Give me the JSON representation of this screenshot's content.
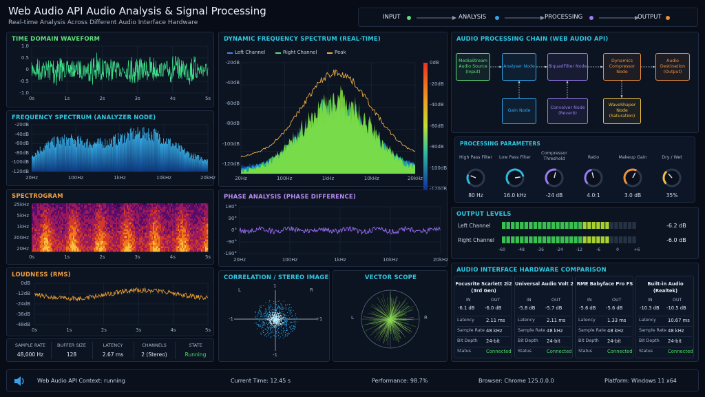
{
  "header": {
    "title": "Web Audio API Audio Analysis & Signal Processing",
    "subtitle": "Real-time Analysis Across Different Audio Interface Hardware",
    "flow": [
      {
        "label": "INPUT",
        "color": "#5fe07a"
      },
      {
        "label": "ANALYSIS",
        "color": "#30a8f0"
      },
      {
        "label": "PROCESSING",
        "color": "#9b7cf2"
      },
      {
        "label": "OUTPUT",
        "color": "#f0903a"
      }
    ]
  },
  "waveform": {
    "title": "TIME DOMAIN WAVEFORM",
    "y_ticks": [
      "1.0",
      "0.5",
      "0",
      "-0.5",
      "-1.0"
    ],
    "x_ticks": [
      "0s",
      "1s",
      "2s",
      "3s",
      "4s",
      "5s"
    ]
  },
  "freq": {
    "title": "FREQUENCY SPECTRUM (ANALYZER NODE)",
    "y_ticks": [
      "-20dB",
      "-40dB",
      "-60dB",
      "-80dB",
      "-100dB",
      "-120dB"
    ],
    "x_ticks": [
      "20Hz",
      "100Hz",
      "1kHz",
      "10kHz",
      "20kHz"
    ]
  },
  "spectrogram": {
    "title": "SPECTROGRAM",
    "y_ticks": [
      "25kHz",
      "5kHz",
      "1kHz",
      "200Hz",
      "20Hz"
    ],
    "x_ticks": [
      "0s",
      "1s",
      "2s",
      "3s",
      "4s",
      "5s"
    ]
  },
  "loudness": {
    "title": "LOUDNESS (RMS)",
    "y_ticks": [
      "0dB",
      "-12dB",
      "-24dB",
      "-36dB",
      "-48dB"
    ],
    "x_ticks": [
      "0s",
      "1s",
      "2s",
      "3s",
      "4s",
      "5s"
    ]
  },
  "stats": [
    {
      "label": "SAMPLE RATE",
      "value": "48,000 Hz"
    },
    {
      "label": "BUFFER SIZE",
      "value": "128"
    },
    {
      "label": "LATENCY",
      "value": "2.67 ms"
    },
    {
      "label": "CHANNELS",
      "value": "2 (Stereo)"
    },
    {
      "label": "STATE",
      "value": "Running",
      "color": "#4cd964"
    }
  ],
  "dynamic": {
    "title": "DYNAMIC FREQUENCY SPECTRUM (REAL-TIME)",
    "legend": [
      {
        "label": "Left Channel",
        "color": "#3a8ef0"
      },
      {
        "label": "Right Channel",
        "color": "#5fe07a"
      },
      {
        "label": "Peak",
        "color": "#f0b040"
      }
    ],
    "y_ticks": [
      "-20dB",
      "-40dB",
      "-60dB",
      "-80dB",
      "-100dB",
      "-120dB"
    ],
    "x_ticks": [
      "20Hz",
      "100Hz",
      "1kHz",
      "10kHz",
      "20kHz"
    ],
    "scale_ticks": [
      "0dB",
      "-20dB",
      "-40dB",
      "-60dB",
      "-80dB",
      "-100dB",
      "-120dB"
    ]
  },
  "phase": {
    "title": "PHASE ANALYSIS (PHASE DIFFERENCE)",
    "y_ticks": [
      "180°",
      "90°",
      "0°",
      "-90°",
      "-180°"
    ],
    "x_ticks": [
      "20Hz",
      "100Hz",
      "1kHz",
      "10kHz",
      "20kHz"
    ]
  },
  "correlation": {
    "title": "CORRELATION / STEREO IMAGE",
    "l": "L",
    "r": "R",
    "neg": "-1",
    "pos": "+1",
    "top": "1",
    "bottom": "-1"
  },
  "vectorscope": {
    "title": "VECTOR SCOPE",
    "l": "L",
    "r": "R"
  },
  "chain": {
    "title": "AUDIO PROCESSING CHAIN (WEB AUDIO API)",
    "nodes": [
      {
        "label": "MediaStream Audio Source (Input)",
        "color": "#5fe07a"
      },
      {
        "label": "Analyser Node",
        "color": "#30a8f0"
      },
      {
        "label": "BiquadFilter Node",
        "color": "#9b7cf2"
      },
      {
        "label": "Dynamics Compressor Node",
        "color": "#f0903a"
      },
      {
        "label": "Audio Destination (Output)",
        "color": "#f0903a"
      },
      {
        "label": "Gain Node",
        "color": "#30a8f0"
      },
      {
        "label": "Convolver Node (Reverb)",
        "color": "#9b7cf2"
      },
      {
        "label": "WaveShaper Node (Saturation)",
        "color": "#f0c040"
      }
    ]
  },
  "params": {
    "title": "PROCESSING PARAMETERS",
    "knobs": [
      {
        "label": "High Pass Filter",
        "value": "80 Hz",
        "color": "#30b8e0",
        "level": 0.25
      },
      {
        "label": "Low Pass Filter",
        "value": "16.0 kHz",
        "color": "#30b8e0",
        "level": 0.8
      },
      {
        "label": "Compressor Threshold",
        "value": "-24 dB",
        "color": "#9b7cf2",
        "level": 0.55
      },
      {
        "label": "Ratio",
        "value": "4.0:1",
        "color": "#9b7cf2",
        "level": 0.45
      },
      {
        "label": "Makeup Gain",
        "value": "3.0 dB",
        "color": "#f0903a",
        "level": 0.6
      },
      {
        "label": "Dry / Wet",
        "value": "35%",
        "color": "#f0c040",
        "level": 0.35
      }
    ]
  },
  "output": {
    "title": "OUTPUT LEVELS",
    "channels": [
      {
        "label": "Left Channel",
        "value": "-6.2 dB",
        "level": 0.78
      },
      {
        "label": "Right Channel",
        "value": "-6.0 dB",
        "level": 0.8
      }
    ],
    "scale": [
      "-60",
      "-48",
      "-36",
      "-24",
      "-12",
      "-6",
      "0",
      "+6"
    ]
  },
  "hardware": {
    "title": "AUDIO INTERFACE HARDWARE COMPARISON",
    "row_labels": {
      "in": "IN",
      "out": "OUT",
      "latency": "Latency",
      "sample_rate": "Sample Rate",
      "bit_depth": "Bit Depth",
      "status": "Status"
    },
    "devices": [
      {
        "name": "Focusrite Scarlett 2i2 (3rd Gen)",
        "in": "-6.1 dB",
        "out": "-6.0 dB",
        "latency": "2.11 ms",
        "sample_rate": "48 kHz",
        "bit_depth": "24-bit",
        "status": "Connected"
      },
      {
        "name": "Universal Audio Volt 2",
        "in": "-5.8 dB",
        "out": "-5.7 dB",
        "latency": "2.11 ms",
        "sample_rate": "48 kHz",
        "bit_depth": "24-bit",
        "status": "Connected"
      },
      {
        "name": "RME Babyface Pro FS",
        "in": "-5.6 dB",
        "out": "-5.6 dB",
        "latency": "1.33 ms",
        "sample_rate": "48 kHz",
        "bit_depth": "24-bit",
        "status": "Connected"
      },
      {
        "name": "Built-in Audio (Realtek)",
        "in": "-10.3 dB",
        "out": "-10.5 dB",
        "latency": "10.67 ms",
        "sample_rate": "48 kHz",
        "bit_depth": "24-bit",
        "status": "Connected"
      }
    ]
  },
  "statusbar": {
    "context": "Web Audio API Context: running",
    "time": "Current Time:  12.45 s",
    "performance": "Performance:   98.7%",
    "browser": "Browser:   Chrome 125.0.0.0",
    "platform": "Platform:   Windows 11 x64"
  }
}
